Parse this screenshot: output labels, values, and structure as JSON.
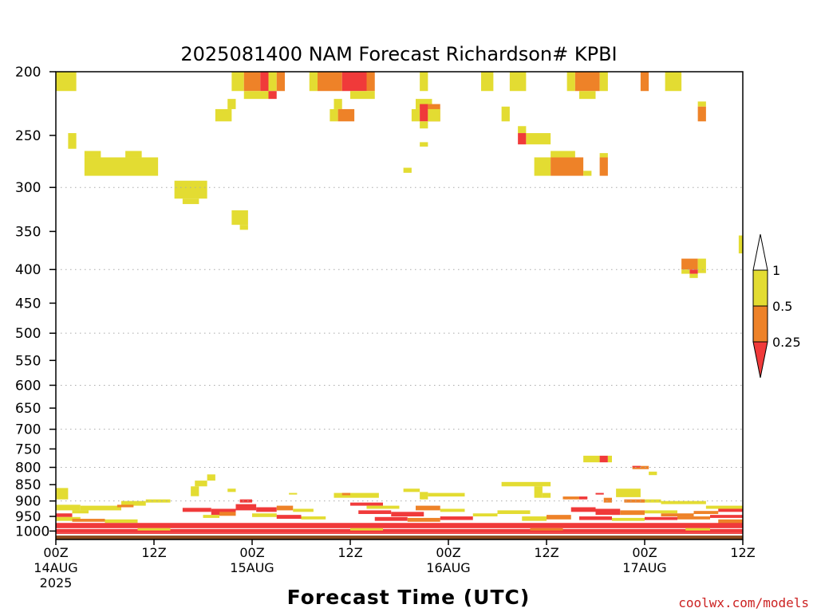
{
  "chart_data": {
    "type": "heatmap",
    "title": "2025081400 NAM Forecast Richardson# KPBI",
    "xlabel": "Forecast Time (UTC)",
    "ylabel": "",
    "y_scale": "log-pressure",
    "y_inverted": true,
    "ylim_hPa": [
      1030,
      200
    ],
    "xlim_hours": [
      0,
      84
    ],
    "y_ticks": [
      200,
      250,
      300,
      350,
      400,
      450,
      500,
      550,
      600,
      650,
      700,
      750,
      800,
      850,
      900,
      950,
      1000
    ],
    "y_tick_labels": [
      "200",
      "250",
      "300",
      "350",
      "400",
      "450",
      "500",
      "550",
      "600",
      "650",
      "700",
      "750",
      "800",
      "850",
      "900",
      "950",
      "1000"
    ],
    "gridlines_hPa": [
      300,
      400,
      500,
      600,
      700,
      800,
      900
    ],
    "x_ticks": [
      {
        "hour": 0,
        "lines": [
          "00Z",
          "14AUG",
          "2025"
        ]
      },
      {
        "hour": 12,
        "lines": [
          "12Z"
        ]
      },
      {
        "hour": 24,
        "lines": [
          "00Z",
          "15AUG"
        ]
      },
      {
        "hour": 36,
        "lines": [
          "12Z"
        ]
      },
      {
        "hour": 48,
        "lines": [
          "00Z",
          "16AUG"
        ]
      },
      {
        "hour": 60,
        "lines": [
          "12Z"
        ]
      },
      {
        "hour": 72,
        "lines": [
          "00Z",
          "17AUG"
        ]
      },
      {
        "hour": 84,
        "lines": [
          "12Z"
        ]
      }
    ],
    "legend": {
      "placement": "right",
      "boundaries": [
        "1",
        "0.5",
        "0.25"
      ],
      "bins": [
        {
          "range": "< 0.25",
          "color": "#f03a3a"
        },
        {
          "range": "0.25 - 0.5",
          "color": "#ee8228"
        },
        {
          "range": "0.5 - 1",
          "color": "#e3dc32"
        },
        {
          "range": "> 1",
          "color": "#ffffff"
        }
      ]
    },
    "colors": {
      "low": "#f03a3a",
      "mid": "#ee8228",
      "high": "#e3dc32",
      "ground": "#8b4a1e",
      "grid": "#aaaaaa"
    },
    "ground_hPa": 1016,
    "cells": [
      {
        "h0": 0,
        "h1": 2.5,
        "p0": 200,
        "p1": 214,
        "c": "high"
      },
      {
        "h0": 21.5,
        "h1": 23,
        "p0": 200,
        "p1": 214,
        "c": "high"
      },
      {
        "h0": 23,
        "h1": 25,
        "p0": 200,
        "p1": 214,
        "c": "mid"
      },
      {
        "h0": 25,
        "h1": 26,
        "p0": 200,
        "p1": 214,
        "c": "low"
      },
      {
        "h0": 26,
        "h1": 27,
        "p0": 200,
        "p1": 214,
        "c": "high"
      },
      {
        "h0": 27,
        "h1": 28,
        "p0": 200,
        "p1": 214,
        "c": "mid"
      },
      {
        "h0": 23,
        "h1": 26,
        "p0": 214,
        "p1": 220,
        "c": "high"
      },
      {
        "h0": 26,
        "h1": 27,
        "p0": 214,
        "p1": 220,
        "c": "low"
      },
      {
        "h0": 31,
        "h1": 32,
        "p0": 200,
        "p1": 214,
        "c": "high"
      },
      {
        "h0": 32,
        "h1": 35,
        "p0": 200,
        "p1": 214,
        "c": "mid"
      },
      {
        "h0": 35,
        "h1": 38,
        "p0": 200,
        "p1": 214,
        "c": "low"
      },
      {
        "h0": 38,
        "h1": 39,
        "p0": 200,
        "p1": 214,
        "c": "mid"
      },
      {
        "h0": 36,
        "h1": 39,
        "p0": 214,
        "p1": 220,
        "c": "high"
      },
      {
        "h0": 44.5,
        "h1": 45.5,
        "p0": 200,
        "p1": 214,
        "c": "high"
      },
      {
        "h0": 52,
        "h1": 53.5,
        "p0": 200,
        "p1": 214,
        "c": "high"
      },
      {
        "h0": 55.5,
        "h1": 57.5,
        "p0": 200,
        "p1": 214,
        "c": "high"
      },
      {
        "h0": 62.5,
        "h1": 63.5,
        "p0": 200,
        "p1": 214,
        "c": "high"
      },
      {
        "h0": 63.5,
        "h1": 66.5,
        "p0": 200,
        "p1": 214,
        "c": "mid"
      },
      {
        "h0": 66.5,
        "h1": 67.5,
        "p0": 200,
        "p1": 214,
        "c": "high"
      },
      {
        "h0": 64,
        "h1": 66,
        "p0": 214,
        "p1": 220,
        "c": "high"
      },
      {
        "h0": 71.5,
        "h1": 72.5,
        "p0": 200,
        "p1": 214,
        "c": "mid"
      },
      {
        "h0": 74.5,
        "h1": 76.5,
        "p0": 200,
        "p1": 214,
        "c": "high"
      },
      {
        "h0": 21,
        "h1": 22,
        "p0": 220,
        "p1": 228,
        "c": "high"
      },
      {
        "h0": 19.5,
        "h1": 21.5,
        "p0": 228,
        "p1": 238,
        "c": "high"
      },
      {
        "h0": 34,
        "h1": 35,
        "p0": 220,
        "p1": 228,
        "c": "high"
      },
      {
        "h0": 33.5,
        "h1": 34.5,
        "p0": 228,
        "p1": 238,
        "c": "high"
      },
      {
        "h0": 34.5,
        "h1": 36.5,
        "p0": 228,
        "p1": 238,
        "c": "mid"
      },
      {
        "h0": 44,
        "h1": 46,
        "p0": 220,
        "p1": 228,
        "c": "high"
      },
      {
        "h0": 43.5,
        "h1": 44.5,
        "p0": 228,
        "p1": 238,
        "c": "high"
      },
      {
        "h0": 44.5,
        "h1": 45.5,
        "p0": 224,
        "p1": 238,
        "c": "low"
      },
      {
        "h0": 45.5,
        "h1": 47,
        "p0": 224,
        "p1": 238,
        "c": "mid"
      },
      {
        "h0": 45.5,
        "h1": 47,
        "p0": 228,
        "p1": 238,
        "c": "high"
      },
      {
        "h0": 44.5,
        "h1": 45.5,
        "p0": 238,
        "p1": 244,
        "c": "high"
      },
      {
        "h0": 54.5,
        "h1": 55.5,
        "p0": 226,
        "p1": 238,
        "c": "high"
      },
      {
        "h0": 78.5,
        "h1": 79.5,
        "p0": 222,
        "p1": 226,
        "c": "high"
      },
      {
        "h0": 78.5,
        "h1": 79.5,
        "p0": 226,
        "p1": 238,
        "c": "mid"
      },
      {
        "h0": 1.5,
        "h1": 2.5,
        "p0": 248,
        "p1": 262,
        "c": "high"
      },
      {
        "h0": 56.5,
        "h1": 57.5,
        "p0": 242,
        "p1": 248,
        "c": "high"
      },
      {
        "h0": 56.5,
        "h1": 57.5,
        "p0": 248,
        "p1": 258,
        "c": "low"
      },
      {
        "h0": 57.5,
        "h1": 60.5,
        "p0": 248,
        "p1": 258,
        "c": "high"
      },
      {
        "h0": 44.5,
        "h1": 45.5,
        "p0": 256,
        "p1": 260,
        "c": "high"
      },
      {
        "h0": 3.5,
        "h1": 5.5,
        "p0": 264,
        "p1": 270,
        "c": "high"
      },
      {
        "h0": 3.5,
        "h1": 12.5,
        "p0": 270,
        "p1": 288,
        "c": "high"
      },
      {
        "h0": 8.5,
        "h1": 10.5,
        "p0": 264,
        "p1": 270,
        "c": "high"
      },
      {
        "h0": 58.5,
        "h1": 60.5,
        "p0": 270,
        "p1": 288,
        "c": "high"
      },
      {
        "h0": 60.5,
        "h1": 64.5,
        "p0": 270,
        "p1": 288,
        "c": "mid"
      },
      {
        "h0": 60.5,
        "h1": 63.5,
        "p0": 264,
        "p1": 270,
        "c": "high"
      },
      {
        "h0": 64.5,
        "h1": 65.5,
        "p0": 283,
        "p1": 288,
        "c": "high"
      },
      {
        "h0": 66.5,
        "h1": 67.5,
        "p0": 270,
        "p1": 288,
        "c": "mid"
      },
      {
        "h0": 66.5,
        "h1": 67.5,
        "p0": 266,
        "p1": 270,
        "c": "high"
      },
      {
        "h0": 42.5,
        "h1": 43.5,
        "p0": 280,
        "p1": 285,
        "c": "high"
      },
      {
        "h0": 14.5,
        "h1": 18.5,
        "p0": 293,
        "p1": 312,
        "c": "high"
      },
      {
        "h0": 15.5,
        "h1": 17.5,
        "p0": 312,
        "p1": 318,
        "c": "high"
      },
      {
        "h0": 21.5,
        "h1": 23.5,
        "p0": 325,
        "p1": 342,
        "c": "high"
      },
      {
        "h0": 22.5,
        "h1": 23.5,
        "p0": 342,
        "p1": 348,
        "c": "high"
      },
      {
        "h0": 83.5,
        "h1": 84,
        "p0": 355,
        "p1": 378,
        "c": "high"
      },
      {
        "h0": 76.5,
        "h1": 78.5,
        "p0": 385,
        "p1": 400,
        "c": "mid"
      },
      {
        "h0": 78.5,
        "h1": 79.5,
        "p0": 385,
        "p1": 405,
        "c": "high"
      },
      {
        "h0": 77.5,
        "h1": 78.5,
        "p0": 400,
        "p1": 406,
        "c": "low"
      },
      {
        "h0": 76.5,
        "h1": 77.5,
        "p0": 400,
        "p1": 406,
        "c": "high"
      },
      {
        "h0": 77.5,
        "h1": 78.5,
        "p0": 406,
        "p1": 412,
        "c": "high"
      },
      {
        "h0": 64.5,
        "h1": 66.5,
        "p0": 768,
        "p1": 786,
        "c": "high"
      },
      {
        "h0": 66.5,
        "h1": 67.5,
        "p0": 768,
        "p1": 786,
        "c": "low"
      },
      {
        "h0": 67.5,
        "h1": 68,
        "p0": 768,
        "p1": 786,
        "c": "high"
      },
      {
        "h0": 70.5,
        "h1": 72.5,
        "p0": 796,
        "p1": 805,
        "c": "mid"
      },
      {
        "h0": 70.5,
        "h1": 71.5,
        "p0": 796,
        "p1": 800,
        "c": "low"
      },
      {
        "h0": 72.5,
        "h1": 73.5,
        "p0": 812,
        "p1": 822,
        "c": "high"
      },
      {
        "h0": 18.5,
        "h1": 19.5,
        "p0": 820,
        "p1": 838,
        "c": "high"
      },
      {
        "h0": 17,
        "h1": 18.5,
        "p0": 838,
        "p1": 855,
        "c": "high"
      },
      {
        "h0": 16.5,
        "h1": 17.5,
        "p0": 855,
        "p1": 885,
        "c": "high"
      },
      {
        "h0": 0,
        "h1": 1.5,
        "p0": 860,
        "p1": 895,
        "c": "high"
      },
      {
        "h0": 21,
        "h1": 22,
        "p0": 862,
        "p1": 872,
        "c": "high"
      },
      {
        "h0": 28.5,
        "h1": 29.5,
        "p0": 875,
        "p1": 880,
        "c": "high"
      },
      {
        "h0": 54.5,
        "h1": 60.5,
        "p0": 842,
        "p1": 855,
        "c": "high"
      },
      {
        "h0": 58.5,
        "h1": 59.5,
        "p0": 855,
        "p1": 890,
        "c": "high"
      },
      {
        "h0": 59.5,
        "h1": 60.5,
        "p0": 875,
        "p1": 890,
        "c": "high"
      },
      {
        "h0": 42.5,
        "h1": 44.5,
        "p0": 862,
        "p1": 872,
        "c": "high"
      },
      {
        "h0": 44.5,
        "h1": 45.5,
        "p0": 872,
        "p1": 895,
        "c": "high"
      },
      {
        "h0": 45.5,
        "h1": 50,
        "p0": 875,
        "p1": 886,
        "c": "high"
      },
      {
        "h0": 34,
        "h1": 39.5,
        "p0": 875,
        "p1": 890,
        "c": "high"
      },
      {
        "h0": 35,
        "h1": 36,
        "p0": 875,
        "p1": 882,
        "c": "mid"
      },
      {
        "h0": 68.5,
        "h1": 71.5,
        "p0": 862,
        "p1": 888,
        "c": "high"
      },
      {
        "h0": 71.5,
        "h1": 74,
        "p0": 895,
        "p1": 905,
        "c": "high"
      },
      {
        "h0": 74,
        "h1": 79.5,
        "p0": 900,
        "p1": 910,
        "c": "high"
      },
      {
        "h0": 79.5,
        "h1": 84,
        "p0": 915,
        "p1": 925,
        "c": "high"
      },
      {
        "h0": 62,
        "h1": 64,
        "p0": 886,
        "p1": 895,
        "c": "mid"
      },
      {
        "h0": 64,
        "h1": 65,
        "p0": 886,
        "p1": 895,
        "c": "low"
      },
      {
        "h0": 66,
        "h1": 67,
        "p0": 875,
        "p1": 880,
        "c": "low"
      },
      {
        "h0": 67,
        "h1": 68,
        "p0": 890,
        "p1": 905,
        "c": "mid"
      },
      {
        "h0": 69.5,
        "h1": 72,
        "p0": 895,
        "p1": 905,
        "c": "mid"
      },
      {
        "h0": 0,
        "h1": 3,
        "p0": 912,
        "p1": 930,
        "c": "high"
      },
      {
        "h0": 3,
        "h1": 8,
        "p0": 915,
        "p1": 930,
        "c": "high"
      },
      {
        "h0": 8,
        "h1": 11,
        "p0": 900,
        "p1": 915,
        "c": "high"
      },
      {
        "h0": 11,
        "h1": 14,
        "p0": 895,
        "p1": 905,
        "c": "high"
      },
      {
        "h0": 7.5,
        "h1": 9.5,
        "p0": 912,
        "p1": 920,
        "c": "mid"
      },
      {
        "h0": 2,
        "h1": 4,
        "p0": 930,
        "p1": 940,
        "c": "high"
      },
      {
        "h0": 0,
        "h1": 2,
        "p0": 940,
        "p1": 952,
        "c": "low"
      },
      {
        "h0": 0,
        "h1": 3,
        "p0": 952,
        "p1": 965,
        "c": "high"
      },
      {
        "h0": 2,
        "h1": 6,
        "p0": 958,
        "p1": 968,
        "c": "mid"
      },
      {
        "h0": 6,
        "h1": 10,
        "p0": 960,
        "p1": 972,
        "c": "high"
      },
      {
        "h0": 15.5,
        "h1": 19,
        "p0": 922,
        "p1": 935,
        "c": "low"
      },
      {
        "h0": 19,
        "h1": 22,
        "p0": 925,
        "p1": 945,
        "c": "low"
      },
      {
        "h0": 22,
        "h1": 24.5,
        "p0": 910,
        "p1": 930,
        "c": "low"
      },
      {
        "h0": 22.5,
        "h1": 24,
        "p0": 895,
        "p1": 905,
        "c": "low"
      },
      {
        "h0": 24.5,
        "h1": 27,
        "p0": 920,
        "p1": 935,
        "c": "low"
      },
      {
        "h0": 27,
        "h1": 29,
        "p0": 915,
        "p1": 930,
        "c": "mid"
      },
      {
        "h0": 29,
        "h1": 31.5,
        "p0": 925,
        "p1": 935,
        "c": "high"
      },
      {
        "h0": 18,
        "h1": 20,
        "p0": 945,
        "p1": 955,
        "c": "high"
      },
      {
        "h0": 20,
        "h1": 22,
        "p0": 935,
        "p1": 948,
        "c": "mid"
      },
      {
        "h0": 24,
        "h1": 27,
        "p0": 940,
        "p1": 952,
        "c": "high"
      },
      {
        "h0": 27,
        "h1": 30,
        "p0": 945,
        "p1": 958,
        "c": "low"
      },
      {
        "h0": 30,
        "h1": 33,
        "p0": 950,
        "p1": 960,
        "c": "high"
      },
      {
        "h0": 36,
        "h1": 40,
        "p0": 905,
        "p1": 915,
        "c": "low"
      },
      {
        "h0": 38,
        "h1": 42,
        "p0": 915,
        "p1": 925,
        "c": "high"
      },
      {
        "h0": 37,
        "h1": 41,
        "p0": 930,
        "p1": 942,
        "c": "low"
      },
      {
        "h0": 41,
        "h1": 45,
        "p0": 935,
        "p1": 950,
        "c": "low"
      },
      {
        "h0": 44,
        "h1": 47,
        "p0": 915,
        "p1": 930,
        "c": "mid"
      },
      {
        "h0": 47,
        "h1": 50,
        "p0": 925,
        "p1": 935,
        "c": "high"
      },
      {
        "h0": 39,
        "h1": 43,
        "p0": 952,
        "p1": 965,
        "c": "low"
      },
      {
        "h0": 43,
        "h1": 47,
        "p0": 955,
        "p1": 968,
        "c": "mid"
      },
      {
        "h0": 47,
        "h1": 51,
        "p0": 950,
        "p1": 962,
        "c": "low"
      },
      {
        "h0": 51,
        "h1": 54,
        "p0": 940,
        "p1": 950,
        "c": "high"
      },
      {
        "h0": 54,
        "h1": 58,
        "p0": 930,
        "p1": 942,
        "c": "high"
      },
      {
        "h0": 57,
        "h1": 60,
        "p0": 950,
        "p1": 965,
        "c": "high"
      },
      {
        "h0": 60,
        "h1": 63,
        "p0": 945,
        "p1": 960,
        "c": "mid"
      },
      {
        "h0": 63,
        "h1": 66,
        "p0": 920,
        "p1": 935,
        "c": "low"
      },
      {
        "h0": 66,
        "h1": 69,
        "p0": 925,
        "p1": 945,
        "c": "low"
      },
      {
        "h0": 69,
        "h1": 72,
        "p0": 930,
        "p1": 945,
        "c": "mid"
      },
      {
        "h0": 72,
        "h1": 76,
        "p0": 930,
        "p1": 940,
        "c": "high"
      },
      {
        "h0": 74,
        "h1": 78,
        "p0": 940,
        "p1": 950,
        "c": "mid"
      },
      {
        "h0": 78,
        "h1": 81,
        "p0": 932,
        "p1": 942,
        "c": "mid"
      },
      {
        "h0": 81,
        "h1": 84,
        "p0": 925,
        "p1": 935,
        "c": "low"
      },
      {
        "h0": 64,
        "h1": 68,
        "p0": 950,
        "p1": 962,
        "c": "low"
      },
      {
        "h0": 68,
        "h1": 72,
        "p0": 955,
        "p1": 965,
        "c": "high"
      },
      {
        "h0": 72,
        "h1": 76,
        "p0": 952,
        "p1": 962,
        "c": "low"
      },
      {
        "h0": 76,
        "h1": 80,
        "p0": 950,
        "p1": 960,
        "c": "mid"
      },
      {
        "h0": 80,
        "h1": 84,
        "p0": 945,
        "p1": 955,
        "c": "low"
      },
      {
        "h0": 81,
        "h1": 84,
        "p0": 960,
        "p1": 975,
        "c": "mid"
      },
      {
        "h0": 0,
        "h1": 84,
        "p0": 972,
        "p1": 990,
        "c": "low"
      },
      {
        "h0": 0,
        "h1": 84,
        "p0": 993,
        "p1": 1005,
        "c": "low"
      },
      {
        "h0": 10,
        "h1": 14,
        "p0": 990,
        "p1": 998,
        "c": "high"
      },
      {
        "h0": 36,
        "h1": 40,
        "p0": 990,
        "p1": 998,
        "c": "high"
      },
      {
        "h0": 58,
        "h1": 62,
        "p0": 990,
        "p1": 998,
        "c": "mid"
      },
      {
        "h0": 77,
        "h1": 80,
        "p0": 990,
        "p1": 998,
        "c": "high"
      },
      {
        "h0": 0,
        "h1": 84,
        "p0": 1005,
        "p1": 1010,
        "c": "low"
      }
    ]
  },
  "credit": "coolwx.com/models"
}
